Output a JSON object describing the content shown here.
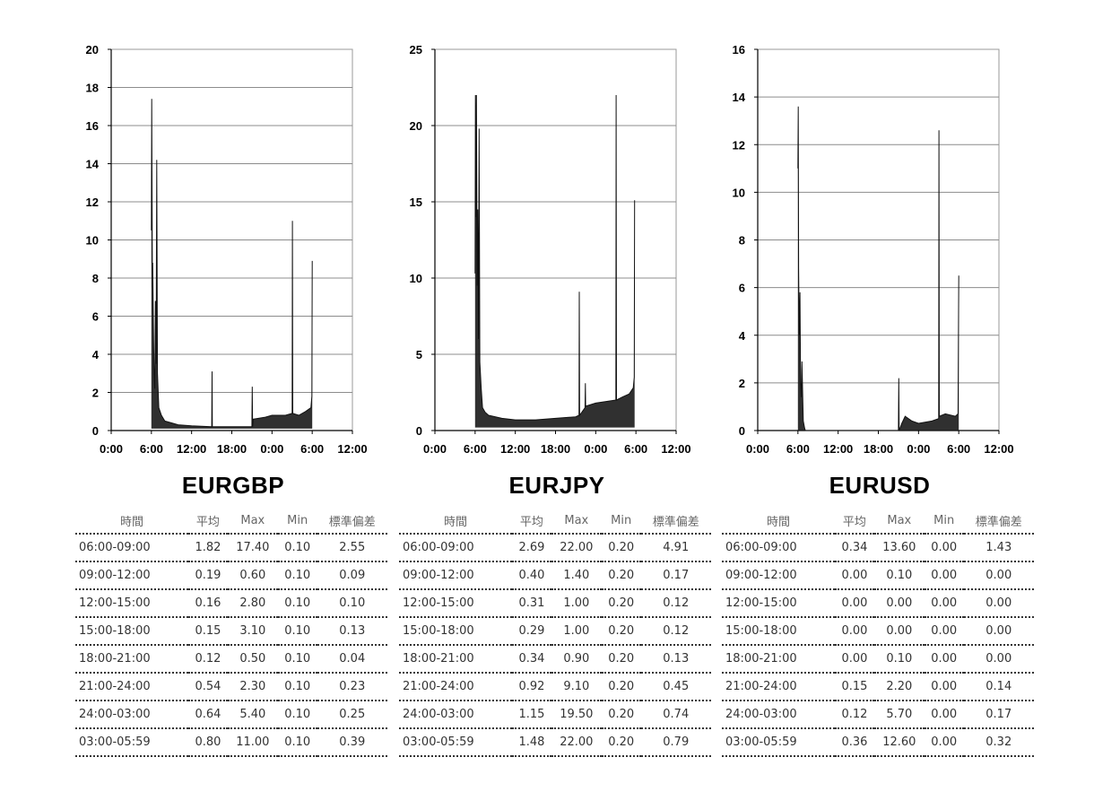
{
  "chart_data": [
    {
      "type": "line",
      "title": "EURGBP",
      "xlabel": "",
      "ylabel": "",
      "x_ticks": [
        "0:00",
        "6:00",
        "12:00",
        "18:00",
        "0:00",
        "6:00",
        "12:00"
      ],
      "xlim": [
        0,
        36
      ],
      "ylim": [
        0,
        20
      ],
      "y_ticks": [
        "0",
        "2",
        "4",
        "6",
        "8",
        "10",
        "12",
        "14",
        "16",
        "18",
        "20"
      ],
      "grid": true,
      "series": [
        {
          "points": [
            [
              6.0,
              10.5
            ],
            [
              6.05,
              17.4
            ],
            [
              6.1,
              12.0
            ],
            [
              6.15,
              7.5
            ],
            [
              6.2,
              8.8
            ],
            [
              6.3,
              5.5
            ],
            [
              6.4,
              3.0
            ],
            [
              6.5,
              2.2
            ],
            [
              6.6,
              6.8
            ],
            [
              6.7,
              3.5
            ],
            [
              6.8,
              14.2
            ],
            [
              6.9,
              3.0
            ],
            [
              7.1,
              1.2
            ],
            [
              7.5,
              0.8
            ],
            [
              8,
              0.5
            ],
            [
              9,
              0.4
            ],
            [
              10,
              0.3
            ],
            [
              12,
              0.25
            ],
            [
              15,
              0.2
            ],
            [
              15.05,
              3.1
            ],
            [
              15.1,
              0.2
            ],
            [
              18,
              0.2
            ],
            [
              21,
              0.2
            ],
            [
              21.05,
              2.3
            ],
            [
              21.1,
              0.2
            ],
            [
              21.2,
              0.6
            ],
            [
              23,
              0.7
            ],
            [
              24,
              0.8
            ],
            [
              26,
              0.8
            ],
            [
              27,
              0.9
            ],
            [
              27.05,
              11.0
            ],
            [
              27.1,
              0.9
            ],
            [
              28,
              0.8
            ],
            [
              29,
              1.0
            ],
            [
              29.8,
              1.2
            ],
            [
              29.95,
              1.8
            ],
            [
              30.0,
              8.9
            ]
          ],
          "band_lower": 0.1
        }
      ],
      "table": {
        "headers": [
          "時間",
          "平均",
          "Max",
          "Min",
          "標準偏差"
        ],
        "rows": [
          [
            "06:00-09:00",
            "1.82",
            "17.40",
            "0.10",
            "2.55"
          ],
          [
            "09:00-12:00",
            "0.19",
            "0.60",
            "0.10",
            "0.09"
          ],
          [
            "12:00-15:00",
            "0.16",
            "2.80",
            "0.10",
            "0.10"
          ],
          [
            "15:00-18:00",
            "0.15",
            "3.10",
            "0.10",
            "0.13"
          ],
          [
            "18:00-21:00",
            "0.12",
            "0.50",
            "0.10",
            "0.04"
          ],
          [
            "21:00-24:00",
            "0.54",
            "2.30",
            "0.10",
            "0.23"
          ],
          [
            "24:00-03:00",
            "0.64",
            "5.40",
            "0.10",
            "0.25"
          ],
          [
            "03:00-05:59",
            "0.80",
            "11.00",
            "0.10",
            "0.39"
          ]
        ]
      }
    },
    {
      "type": "line",
      "title": "EURJPY",
      "xlabel": "",
      "ylabel": "",
      "x_ticks": [
        "0:00",
        "6:00",
        "12:00",
        "18:00",
        "0:00",
        "6:00",
        "12:00"
      ],
      "xlim": [
        0,
        36
      ],
      "ylim": [
        0,
        25
      ],
      "y_ticks": [
        "0",
        "5",
        "10",
        "15",
        "20",
        "25"
      ],
      "grid": true,
      "series": [
        {
          "points": [
            [
              6.0,
              10.3
            ],
            [
              6.05,
              22.0
            ],
            [
              6.1,
              14.0
            ],
            [
              6.2,
              22.0
            ],
            [
              6.3,
              9.5
            ],
            [
              6.4,
              14.5
            ],
            [
              6.5,
              6.0
            ],
            [
              6.6,
              19.8
            ],
            [
              6.7,
              4.5
            ],
            [
              6.9,
              2.8
            ],
            [
              7.1,
              1.5
            ],
            [
              7.5,
              1.2
            ],
            [
              8,
              1.0
            ],
            [
              10,
              0.8
            ],
            [
              12,
              0.7
            ],
            [
              15,
              0.7
            ],
            [
              18,
              0.8
            ],
            [
              21,
              0.9
            ],
            [
              21.5,
              1.0
            ],
            [
              21.55,
              9.1
            ],
            [
              21.6,
              1.0
            ],
            [
              22.4,
              1.5
            ],
            [
              22.45,
              3.1
            ],
            [
              22.5,
              1.6
            ],
            [
              24,
              1.8
            ],
            [
              27,
              2.0
            ],
            [
              27.05,
              22.0
            ],
            [
              27.1,
              2.0
            ],
            [
              28,
              2.2
            ],
            [
              29,
              2.4
            ],
            [
              29.6,
              2.8
            ],
            [
              29.75,
              3.5
            ],
            [
              29.8,
              15.1
            ]
          ],
          "band_lower": 0.2
        }
      ],
      "table": {
        "headers": [
          "時間",
          "平均",
          "Max",
          "Min",
          "標準偏差"
        ],
        "rows": [
          [
            "06:00-09:00",
            "2.69",
            "22.00",
            "0.20",
            "4.91"
          ],
          [
            "09:00-12:00",
            "0.40",
            "1.40",
            "0.20",
            "0.17"
          ],
          [
            "12:00-15:00",
            "0.31",
            "1.00",
            "0.20",
            "0.12"
          ],
          [
            "15:00-18:00",
            "0.29",
            "1.00",
            "0.20",
            "0.12"
          ],
          [
            "18:00-21:00",
            "0.34",
            "0.90",
            "0.20",
            "0.13"
          ],
          [
            "21:00-24:00",
            "0.92",
            "9.10",
            "0.20",
            "0.45"
          ],
          [
            "24:00-03:00",
            "1.15",
            "19.50",
            "0.20",
            "0.74"
          ],
          [
            "03:00-05:59",
            "1.48",
            "22.00",
            "0.20",
            "0.79"
          ]
        ]
      }
    },
    {
      "type": "line",
      "title": "EURUSD",
      "xlabel": "",
      "ylabel": "",
      "x_ticks": [
        "0:00",
        "6:00",
        "12:00",
        "18:00",
        "0:00",
        "6:00",
        "12:00"
      ],
      "xlim": [
        0,
        36
      ],
      "ylim": [
        0,
        16
      ],
      "y_ticks": [
        "0",
        "2",
        "4",
        "6",
        "8",
        "10",
        "12",
        "14",
        "16"
      ],
      "grid": true,
      "series": [
        {
          "points": [
            [
              6.0,
              11.0
            ],
            [
              6.05,
              13.6
            ],
            [
              6.1,
              6.8
            ],
            [
              6.2,
              4.0
            ],
            [
              6.3,
              5.8
            ],
            [
              6.4,
              2.0
            ],
            [
              6.5,
              1.4
            ],
            [
              6.6,
              2.9
            ],
            [
              6.8,
              0.4
            ],
            [
              7.0,
              0.1
            ],
            [
              7.1,
              0.0
            ],
            [
              9,
              0.0
            ],
            [
              12,
              0.0
            ],
            [
              15,
              0.0
            ],
            [
              18,
              0.0
            ],
            [
              21,
              0.0
            ],
            [
              21.05,
              2.2
            ],
            [
              21.1,
              0.0
            ],
            [
              21.5,
              0.3
            ],
            [
              22,
              0.6
            ],
            [
              23,
              0.4
            ],
            [
              24,
              0.3
            ],
            [
              26,
              0.4
            ],
            [
              27,
              0.5
            ],
            [
              27.05,
              12.6
            ],
            [
              27.1,
              0.6
            ],
            [
              28,
              0.7
            ],
            [
              29.5,
              0.6
            ],
            [
              29.9,
              0.7
            ],
            [
              30.0,
              6.5
            ]
          ],
          "band_lower": 0.0
        }
      ],
      "table": {
        "headers": [
          "時間",
          "平均",
          "Max",
          "Min",
          "標準偏差"
        ],
        "rows": [
          [
            "06:00-09:00",
            "0.34",
            "13.60",
            "0.00",
            "1.43"
          ],
          [
            "09:00-12:00",
            "0.00",
            "0.10",
            "0.00",
            "0.00"
          ],
          [
            "12:00-15:00",
            "0.00",
            "0.00",
            "0.00",
            "0.00"
          ],
          [
            "15:00-18:00",
            "0.00",
            "0.00",
            "0.00",
            "0.00"
          ],
          [
            "18:00-21:00",
            "0.00",
            "0.10",
            "0.00",
            "0.00"
          ],
          [
            "21:00-24:00",
            "0.15",
            "2.20",
            "0.00",
            "0.14"
          ],
          [
            "24:00-03:00",
            "0.12",
            "5.70",
            "0.00",
            "0.17"
          ],
          [
            "03:00-05:59",
            "0.36",
            "12.60",
            "0.00",
            "0.32"
          ]
        ]
      }
    }
  ]
}
